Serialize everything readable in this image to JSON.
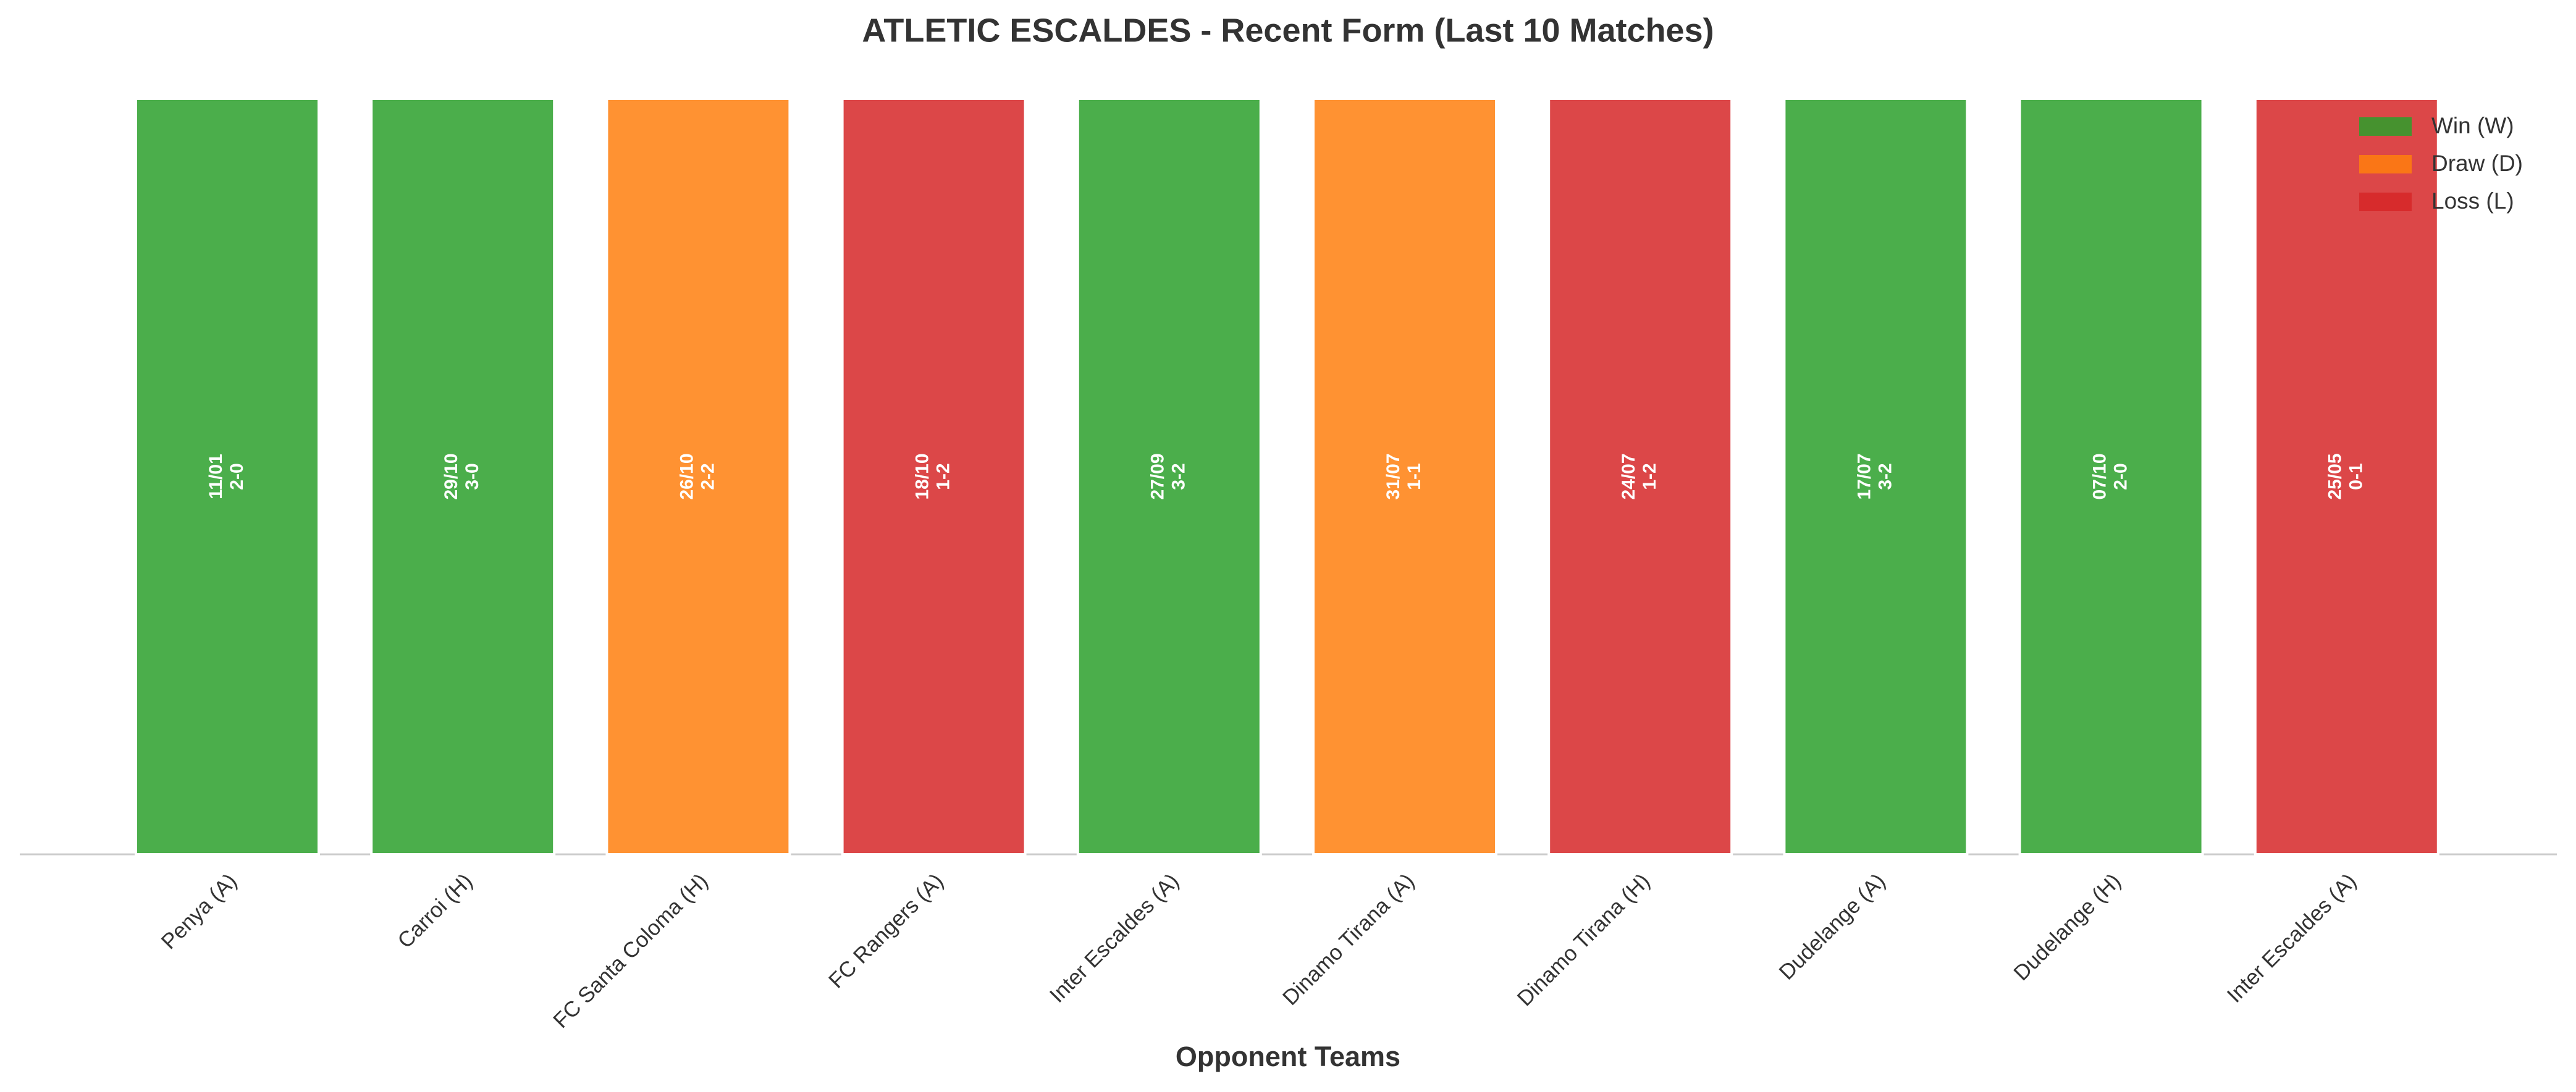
{
  "chart_data": {
    "type": "bar",
    "title": "ATLETIC ESCALDES - Recent Form (Last 10 Matches)",
    "x_label": "Opponent Teams",
    "categories": [
      "Penya (A)",
      "Carroi (H)",
      "FC Santa Coloma (H)",
      "FC Rangers (A)",
      "Inter Escaldes (A)",
      "Dinamo Tirana (A)",
      "Dinamo Tirana (H)",
      "Dudelange (A)",
      "Dudelange (H)",
      "Inter Escaldes (A)"
    ],
    "values": [
      1,
      1,
      1,
      1,
      1,
      1,
      1,
      1,
      1,
      1
    ],
    "dates": [
      "11/01",
      "29/10",
      "26/10",
      "18/10",
      "27/09",
      "31/07",
      "24/07",
      "17/07",
      "07/10",
      "25/05"
    ],
    "scores": [
      "2-0",
      "3-0",
      "2-2",
      "1-2",
      "3-2",
      "1-1",
      "1-2",
      "3-2",
      "2-0",
      "0-1"
    ],
    "colors": [
      "#2ca02c",
      "#2ca02c",
      "#ff7f0e",
      "#d62728",
      "#2ca02c",
      "#ff7f0e",
      "#d62728",
      "#2ca02c",
      "#2ca02c",
      "#d62728"
    ],
    "ylim": [
      0,
      1
    ],
    "legend_position": "upper right",
    "legend": [
      {
        "name": "Win (W)",
        "color": "#2ca02c"
      },
      {
        "name": "Draw (D)",
        "color": "#ff7f0e"
      },
      {
        "name": "Loss (L)",
        "color": "#d62728"
      }
    ]
  }
}
